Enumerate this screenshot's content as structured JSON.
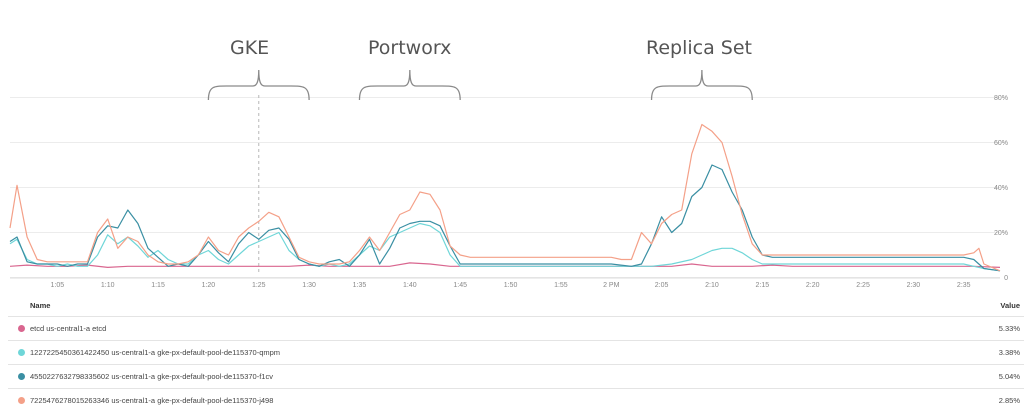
{
  "annotations": [
    {
      "label": "GKE",
      "from": "1:20",
      "to": "1:30"
    },
    {
      "label": "Portworx",
      "from": "1:35",
      "to": "1:45"
    },
    {
      "label": "Replica Set",
      "from": "2:04",
      "to": "2:14"
    }
  ],
  "marker_time": "1:25",
  "chart_data": {
    "type": "line",
    "xlabel": "",
    "ylabel": "",
    "x_tick_labels": [
      "1:05",
      "1:10",
      "1:15",
      "1:20",
      "1:25",
      "1:30",
      "1:35",
      "1:40",
      "1:45",
      "1:50",
      "1:55",
      "2 PM",
      "2:05",
      "2:10",
      "2:15",
      "2:20",
      "2:25",
      "2:30",
      "2:35"
    ],
    "x_tick_minutes": [
      65,
      70,
      75,
      80,
      85,
      90,
      95,
      100,
      105,
      110,
      115,
      120,
      125,
      130,
      135,
      140,
      145,
      150,
      155
    ],
    "xlim": [
      60.3,
      158.6
    ],
    "y_tick_labels": [
      "0",
      "20%",
      "40%",
      "60%",
      "80%"
    ],
    "y_tick_values": [
      0,
      20,
      40,
      60,
      80
    ],
    "ylim": [
      0,
      80
    ],
    "grid": true,
    "legend": "bottom",
    "series": [
      {
        "name": "etcd us-central1-a etcd",
        "color": "#d9668f",
        "value": "5.33%",
        "points": [
          [
            60.3,
            5
          ],
          [
            62,
            5.5
          ],
          [
            64,
            5
          ],
          [
            66,
            5
          ],
          [
            68,
            5.5
          ],
          [
            70,
            4.5
          ],
          [
            72,
            5
          ],
          [
            74,
            5
          ],
          [
            76,
            5
          ],
          [
            78,
            5
          ],
          [
            80,
            5
          ],
          [
            82,
            5
          ],
          [
            84,
            5
          ],
          [
            86,
            5
          ],
          [
            88,
            5
          ],
          [
            90,
            5.5
          ],
          [
            92,
            5
          ],
          [
            94,
            5
          ],
          [
            96,
            5
          ],
          [
            98,
            5
          ],
          [
            100,
            6.5
          ],
          [
            102,
            6
          ],
          [
            104,
            5
          ],
          [
            106,
            5
          ],
          [
            108,
            5
          ],
          [
            110,
            5
          ],
          [
            112,
            5
          ],
          [
            114,
            5
          ],
          [
            116,
            5
          ],
          [
            118,
            5
          ],
          [
            120,
            5
          ],
          [
            122,
            5
          ],
          [
            124,
            5
          ],
          [
            126,
            5
          ],
          [
            128,
            6
          ],
          [
            130,
            5
          ],
          [
            132,
            5
          ],
          [
            134,
            5
          ],
          [
            136,
            5.5
          ],
          [
            138,
            5
          ],
          [
            140,
            5
          ],
          [
            142,
            5
          ],
          [
            144,
            5
          ],
          [
            146,
            5
          ],
          [
            148,
            5
          ],
          [
            150,
            5
          ],
          [
            152,
            5
          ],
          [
            154,
            5
          ],
          [
            156,
            5
          ],
          [
            158.6,
            4.5
          ]
        ]
      },
      {
        "name": "1227225450361422450 us-central1-a gke-px-default-pool-de115370-qmpm",
        "color": "#6fd6d8",
        "value": "3.38%",
        "points": [
          [
            60.3,
            15
          ],
          [
            61,
            17
          ],
          [
            62,
            8
          ],
          [
            63,
            6
          ],
          [
            64,
            6
          ],
          [
            65,
            5
          ],
          [
            66,
            6
          ],
          [
            67,
            5
          ],
          [
            68,
            5
          ],
          [
            69,
            10
          ],
          [
            70,
            19
          ],
          [
            71,
            15
          ],
          [
            72,
            18
          ],
          [
            73,
            14
          ],
          [
            74,
            9
          ],
          [
            75,
            12
          ],
          [
            76,
            8
          ],
          [
            77,
            6
          ],
          [
            78,
            6
          ],
          [
            79,
            10
          ],
          [
            80,
            12
          ],
          [
            81,
            8
          ],
          [
            82,
            6
          ],
          [
            83,
            10
          ],
          [
            84,
            14
          ],
          [
            85,
            16
          ],
          [
            86,
            18
          ],
          [
            87,
            20
          ],
          [
            88,
            12
          ],
          [
            89,
            8
          ],
          [
            90,
            6
          ],
          [
            91,
            5
          ],
          [
            92,
            6
          ],
          [
            93,
            5
          ],
          [
            94,
            6
          ],
          [
            95,
            10
          ],
          [
            96,
            14
          ],
          [
            97,
            12
          ],
          [
            98,
            18
          ],
          [
            99,
            20
          ],
          [
            100,
            22
          ],
          [
            101,
            24
          ],
          [
            102,
            23
          ],
          [
            103,
            20
          ],
          [
            104,
            10
          ],
          [
            105,
            5
          ],
          [
            106,
            5
          ],
          [
            107,
            5
          ],
          [
            108,
            5
          ],
          [
            109,
            5
          ],
          [
            110,
            5
          ],
          [
            112,
            5
          ],
          [
            114,
            5
          ],
          [
            116,
            5
          ],
          [
            118,
            5
          ],
          [
            120,
            5
          ],
          [
            122,
            5
          ],
          [
            124,
            5
          ],
          [
            126,
            6
          ],
          [
            128,
            8
          ],
          [
            129,
            10
          ],
          [
            130,
            12
          ],
          [
            131,
            13
          ],
          [
            132,
            13
          ],
          [
            133,
            11
          ],
          [
            134,
            8
          ],
          [
            135,
            6
          ],
          [
            136,
            6
          ],
          [
            138,
            6
          ],
          [
            140,
            6
          ],
          [
            142,
            6
          ],
          [
            144,
            6
          ],
          [
            146,
            6
          ],
          [
            148,
            6
          ],
          [
            150,
            6
          ],
          [
            152,
            6
          ],
          [
            154,
            6
          ],
          [
            155,
            6
          ],
          [
            156,
            5
          ],
          [
            157,
            4
          ],
          [
            158.6,
            3
          ]
        ]
      },
      {
        "name": "4550227632798335602 us-central1-a gke-px-default-pool-de115370-f1cv",
        "color": "#3a8fa3",
        "value": "5.04%",
        "points": [
          [
            60.3,
            16
          ],
          [
            61,
            18
          ],
          [
            62,
            7
          ],
          [
            63,
            6
          ],
          [
            64,
            6
          ],
          [
            65,
            6
          ],
          [
            66,
            5
          ],
          [
            67,
            6
          ],
          [
            68,
            6
          ],
          [
            69,
            18
          ],
          [
            70,
            23
          ],
          [
            71,
            22
          ],
          [
            72,
            30
          ],
          [
            73,
            24
          ],
          [
            74,
            13
          ],
          [
            75,
            9
          ],
          [
            76,
            5
          ],
          [
            77,
            6
          ],
          [
            78,
            5
          ],
          [
            79,
            10
          ],
          [
            80,
            16
          ],
          [
            81,
            11
          ],
          [
            82,
            7
          ],
          [
            83,
            15
          ],
          [
            84,
            20
          ],
          [
            85,
            17
          ],
          [
            86,
            21
          ],
          [
            87,
            22
          ],
          [
            88,
            17
          ],
          [
            89,
            8
          ],
          [
            90,
            6
          ],
          [
            91,
            5
          ],
          [
            92,
            7
          ],
          [
            93,
            8
          ],
          [
            94,
            5
          ],
          [
            95,
            10
          ],
          [
            96,
            17
          ],
          [
            97,
            6
          ],
          [
            98,
            13
          ],
          [
            99,
            22
          ],
          [
            100,
            24
          ],
          [
            101,
            25
          ],
          [
            102,
            25
          ],
          [
            103,
            23
          ],
          [
            104,
            14
          ],
          [
            105,
            6
          ],
          [
            106,
            6
          ],
          [
            107,
            6
          ],
          [
            108,
            6
          ],
          [
            109,
            6
          ],
          [
            110,
            6
          ],
          [
            112,
            6
          ],
          [
            114,
            6
          ],
          [
            116,
            6
          ],
          [
            118,
            6
          ],
          [
            120,
            6
          ],
          [
            122,
            5
          ],
          [
            123,
            6
          ],
          [
            124,
            15
          ],
          [
            125,
            27
          ],
          [
            126,
            20
          ],
          [
            127,
            24
          ],
          [
            128,
            36
          ],
          [
            129,
            40
          ],
          [
            130,
            50
          ],
          [
            131,
            48
          ],
          [
            132,
            38
          ],
          [
            133,
            30
          ],
          [
            134,
            18
          ],
          [
            135,
            10
          ],
          [
            136,
            9
          ],
          [
            138,
            9
          ],
          [
            140,
            9
          ],
          [
            142,
            9
          ],
          [
            144,
            9
          ],
          [
            146,
            9
          ],
          [
            148,
            9
          ],
          [
            150,
            9
          ],
          [
            152,
            9
          ],
          [
            154,
            9
          ],
          [
            155,
            9
          ],
          [
            156,
            8
          ],
          [
            157,
            4
          ],
          [
            158.6,
            3
          ]
        ]
      },
      {
        "name": "7225476278015263346 us-central1-a gke-px-default-pool-de115370-j498",
        "color": "#f4a088",
        "value": "2.85%",
        "points": [
          [
            60.3,
            22
          ],
          [
            61,
            41
          ],
          [
            62,
            18
          ],
          [
            63,
            8
          ],
          [
            64,
            7
          ],
          [
            65,
            7
          ],
          [
            66,
            7
          ],
          [
            67,
            7
          ],
          [
            68,
            7
          ],
          [
            69,
            20
          ],
          [
            70,
            26
          ],
          [
            71,
            13
          ],
          [
            72,
            18
          ],
          [
            73,
            16
          ],
          [
            74,
            10
          ],
          [
            75,
            7
          ],
          [
            76,
            6
          ],
          [
            77,
            6
          ],
          [
            78,
            7
          ],
          [
            79,
            10
          ],
          [
            80,
            18
          ],
          [
            81,
            12
          ],
          [
            82,
            10
          ],
          [
            83,
            18
          ],
          [
            84,
            22
          ],
          [
            85,
            25
          ],
          [
            86,
            29
          ],
          [
            87,
            27
          ],
          [
            88,
            18
          ],
          [
            89,
            9
          ],
          [
            90,
            7
          ],
          [
            91,
            6
          ],
          [
            92,
            6
          ],
          [
            93,
            6
          ],
          [
            94,
            7
          ],
          [
            95,
            12
          ],
          [
            96,
            18
          ],
          [
            97,
            12
          ],
          [
            98,
            20
          ],
          [
            99,
            28
          ],
          [
            100,
            30
          ],
          [
            101,
            38
          ],
          [
            102,
            37
          ],
          [
            103,
            30
          ],
          [
            104,
            14
          ],
          [
            105,
            10
          ],
          [
            106,
            9
          ],
          [
            107,
            9
          ],
          [
            108,
            9
          ],
          [
            109,
            9
          ],
          [
            110,
            9
          ],
          [
            112,
            9
          ],
          [
            114,
            9
          ],
          [
            116,
            9
          ],
          [
            118,
            9
          ],
          [
            120,
            9
          ],
          [
            121,
            8
          ],
          [
            122,
            8
          ],
          [
            123,
            20
          ],
          [
            124,
            15
          ],
          [
            125,
            24
          ],
          [
            126,
            28
          ],
          [
            127,
            30
          ],
          [
            128,
            55
          ],
          [
            129,
            68
          ],
          [
            130,
            65
          ],
          [
            131,
            60
          ],
          [
            132,
            45
          ],
          [
            133,
            28
          ],
          [
            134,
            15
          ],
          [
            135,
            10
          ],
          [
            136,
            10
          ],
          [
            138,
            10
          ],
          [
            140,
            10
          ],
          [
            142,
            10
          ],
          [
            144,
            10
          ],
          [
            146,
            10
          ],
          [
            148,
            10
          ],
          [
            150,
            10
          ],
          [
            152,
            10
          ],
          [
            154,
            10
          ],
          [
            155,
            10
          ],
          [
            156,
            11
          ],
          [
            156.5,
            13
          ],
          [
            157,
            6
          ],
          [
            158.6,
            3
          ]
        ]
      }
    ]
  },
  "legend": {
    "name_header": "Name",
    "value_header": "Value"
  }
}
